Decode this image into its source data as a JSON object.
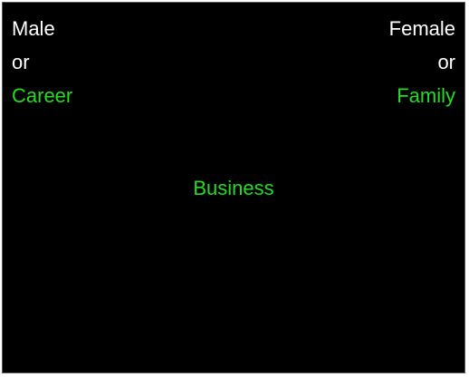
{
  "left_category": {
    "primary": "Male",
    "connector": "or",
    "secondary": "Career"
  },
  "right_category": {
    "primary": "Female",
    "connector": "or",
    "secondary": "Family"
  },
  "stimulus": "Business",
  "colors": {
    "background": "#000000",
    "category_label": "#ffffff",
    "attribute_label": "#22dd22",
    "stimulus": "#22dd22"
  }
}
